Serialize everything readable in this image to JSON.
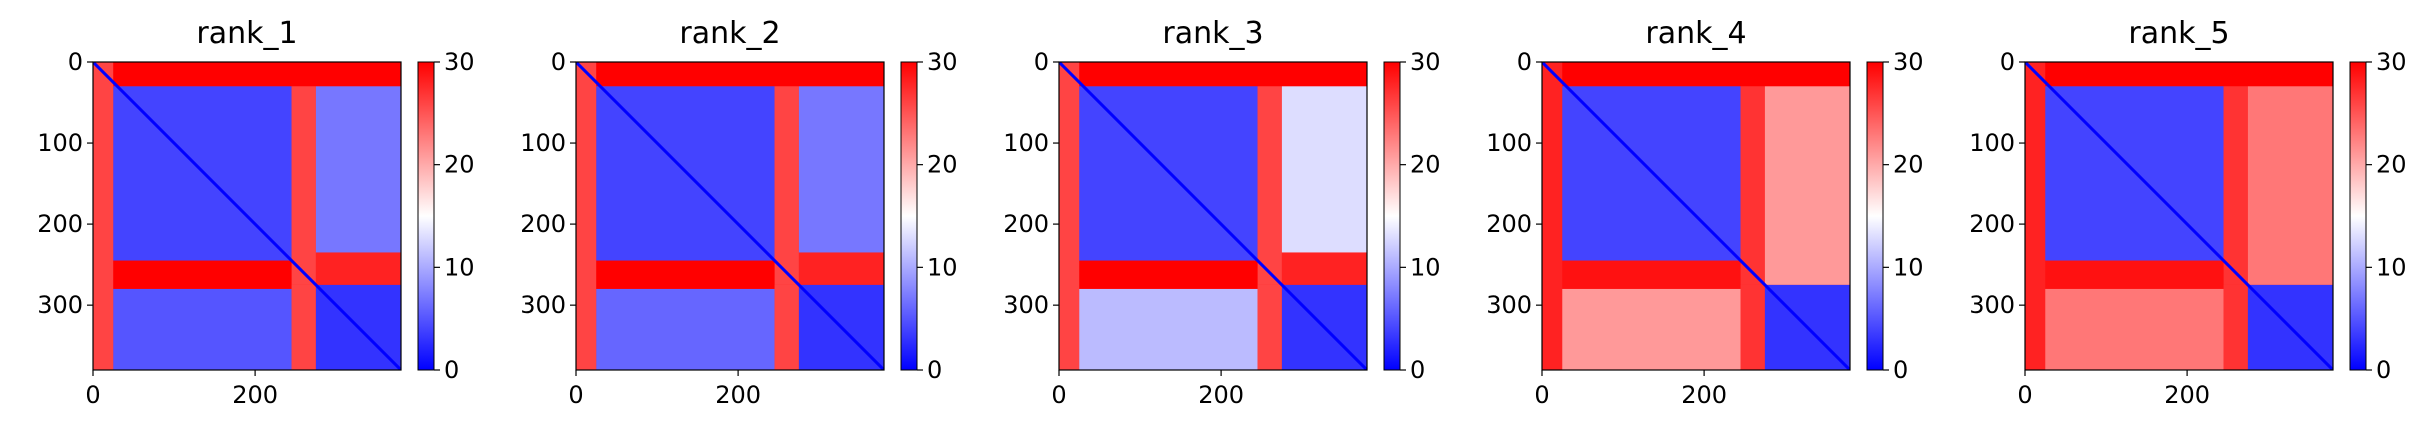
{
  "chart_data": [
    {
      "type": "heatmap",
      "title": "rank_1",
      "xlim": [
        0,
        380
      ],
      "ylim": [
        380,
        0
      ],
      "x_ticks": [
        0,
        200
      ],
      "y_ticks": [
        0,
        100,
        200,
        300
      ],
      "colorbar": {
        "colormap": "bwr",
        "min": 0,
        "max": 30,
        "ticks": [
          0,
          10,
          20,
          30
        ]
      },
      "blocks": [
        {
          "x0": 0,
          "x1": 25,
          "y0": 0,
          "y1": 380,
          "value": 26
        },
        {
          "x0": 25,
          "x1": 385,
          "y0": 0,
          "y1": 30,
          "value": 30
        },
        {
          "x0": 25,
          "x1": 245,
          "y0": 30,
          "y1": 245,
          "value": 4
        },
        {
          "x0": 245,
          "x1": 275,
          "y0": 30,
          "y1": 275,
          "value": 26
        },
        {
          "x0": 275,
          "x1": 385,
          "y0": 30,
          "y1": 235,
          "value": 7
        },
        {
          "x0": 275,
          "x1": 385,
          "y0": 235,
          "y1": 275,
          "value": 28
        },
        {
          "x0": 25,
          "x1": 245,
          "y0": 245,
          "y1": 280,
          "value": 30
        },
        {
          "x0": 25,
          "x1": 245,
          "y0": 280,
          "y1": 380,
          "value": 5
        },
        {
          "x0": 245,
          "x1": 275,
          "y0": 275,
          "y1": 380,
          "value": 26
        },
        {
          "x0": 275,
          "x1": 385,
          "y0": 275,
          "y1": 380,
          "value": 3
        }
      ],
      "diagonal_value": 0
    },
    {
      "type": "heatmap",
      "title": "rank_2",
      "xlim": [
        0,
        380
      ],
      "ylim": [
        380,
        0
      ],
      "x_ticks": [
        0,
        200
      ],
      "y_ticks": [
        0,
        100,
        200,
        300
      ],
      "colorbar": {
        "colormap": "bwr",
        "min": 0,
        "max": 30,
        "ticks": [
          0,
          10,
          20,
          30
        ]
      },
      "blocks": [
        {
          "x0": 0,
          "x1": 25,
          "y0": 0,
          "y1": 380,
          "value": 26
        },
        {
          "x0": 25,
          "x1": 385,
          "y0": 0,
          "y1": 30,
          "value": 30
        },
        {
          "x0": 25,
          "x1": 245,
          "y0": 30,
          "y1": 245,
          "value": 4
        },
        {
          "x0": 245,
          "x1": 275,
          "y0": 30,
          "y1": 275,
          "value": 26
        },
        {
          "x0": 275,
          "x1": 385,
          "y0": 30,
          "y1": 235,
          "value": 7
        },
        {
          "x0": 275,
          "x1": 385,
          "y0": 235,
          "y1": 275,
          "value": 28
        },
        {
          "x0": 25,
          "x1": 245,
          "y0": 245,
          "y1": 280,
          "value": 30
        },
        {
          "x0": 25,
          "x1": 245,
          "y0": 280,
          "y1": 380,
          "value": 6
        },
        {
          "x0": 245,
          "x1": 275,
          "y0": 275,
          "y1": 380,
          "value": 26
        },
        {
          "x0": 275,
          "x1": 385,
          "y0": 275,
          "y1": 380,
          "value": 3
        }
      ],
      "diagonal_value": 0
    },
    {
      "type": "heatmap",
      "title": "rank_3",
      "xlim": [
        0,
        380
      ],
      "ylim": [
        380,
        0
      ],
      "x_ticks": [
        0,
        200
      ],
      "y_ticks": [
        0,
        100,
        200,
        300
      ],
      "colorbar": {
        "colormap": "bwr",
        "min": 0,
        "max": 30,
        "ticks": [
          0,
          10,
          20,
          30
        ]
      },
      "blocks": [
        {
          "x0": 0,
          "x1": 25,
          "y0": 0,
          "y1": 380,
          "value": 26
        },
        {
          "x0": 25,
          "x1": 385,
          "y0": 0,
          "y1": 30,
          "value": 30
        },
        {
          "x0": 25,
          "x1": 245,
          "y0": 30,
          "y1": 245,
          "value": 4
        },
        {
          "x0": 245,
          "x1": 275,
          "y0": 30,
          "y1": 275,
          "value": 26
        },
        {
          "x0": 275,
          "x1": 385,
          "y0": 30,
          "y1": 235,
          "value": 13
        },
        {
          "x0": 275,
          "x1": 385,
          "y0": 235,
          "y1": 275,
          "value": 28
        },
        {
          "x0": 25,
          "x1": 245,
          "y0": 245,
          "y1": 280,
          "value": 30
        },
        {
          "x0": 25,
          "x1": 245,
          "y0": 280,
          "y1": 380,
          "value": 11
        },
        {
          "x0": 245,
          "x1": 275,
          "y0": 275,
          "y1": 380,
          "value": 26
        },
        {
          "x0": 275,
          "x1": 385,
          "y0": 275,
          "y1": 380,
          "value": 3
        }
      ],
      "diagonal_value": 0
    },
    {
      "type": "heatmap",
      "title": "rank_4",
      "xlim": [
        0,
        380
      ],
      "ylim": [
        380,
        0
      ],
      "x_ticks": [
        0,
        200
      ],
      "y_ticks": [
        0,
        100,
        200,
        300
      ],
      "colorbar": {
        "colormap": "bwr",
        "min": 0,
        "max": 30,
        "ticks": [
          0,
          10,
          20,
          30
        ]
      },
      "blocks": [
        {
          "x0": 0,
          "x1": 25,
          "y0": 0,
          "y1": 380,
          "value": 28
        },
        {
          "x0": 25,
          "x1": 385,
          "y0": 0,
          "y1": 30,
          "value": 30
        },
        {
          "x0": 25,
          "x1": 245,
          "y0": 30,
          "y1": 245,
          "value": 4
        },
        {
          "x0": 245,
          "x1": 275,
          "y0": 30,
          "y1": 275,
          "value": 27
        },
        {
          "x0": 275,
          "x1": 385,
          "y0": 30,
          "y1": 275,
          "value": 21
        },
        {
          "x0": 25,
          "x1": 245,
          "y0": 245,
          "y1": 280,
          "value": 29
        },
        {
          "x0": 25,
          "x1": 245,
          "y0": 280,
          "y1": 380,
          "value": 21
        },
        {
          "x0": 245,
          "x1": 275,
          "y0": 275,
          "y1": 380,
          "value": 27
        },
        {
          "x0": 275,
          "x1": 385,
          "y0": 275,
          "y1": 380,
          "value": 3
        }
      ],
      "diagonal_value": 0
    },
    {
      "type": "heatmap",
      "title": "rank_5",
      "xlim": [
        0,
        380
      ],
      "ylim": [
        380,
        0
      ],
      "x_ticks": [
        0,
        200
      ],
      "y_ticks": [
        0,
        100,
        200,
        300
      ],
      "colorbar": {
        "colormap": "bwr",
        "min": 0,
        "max": 30,
        "ticks": [
          0,
          10,
          20,
          30
        ]
      },
      "blocks": [
        {
          "x0": 0,
          "x1": 25,
          "y0": 0,
          "y1": 380,
          "value": 28
        },
        {
          "x0": 25,
          "x1": 385,
          "y0": 0,
          "y1": 30,
          "value": 30
        },
        {
          "x0": 25,
          "x1": 245,
          "y0": 30,
          "y1": 245,
          "value": 4
        },
        {
          "x0": 245,
          "x1": 275,
          "y0": 30,
          "y1": 275,
          "value": 27
        },
        {
          "x0": 275,
          "x1": 385,
          "y0": 30,
          "y1": 275,
          "value": 23
        },
        {
          "x0": 25,
          "x1": 245,
          "y0": 245,
          "y1": 280,
          "value": 29
        },
        {
          "x0": 25,
          "x1": 245,
          "y0": 280,
          "y1": 380,
          "value": 23
        },
        {
          "x0": 245,
          "x1": 275,
          "y0": 275,
          "y1": 380,
          "value": 27
        },
        {
          "x0": 275,
          "x1": 385,
          "y0": 275,
          "y1": 380,
          "value": 3
        }
      ],
      "diagonal_value": 0
    }
  ]
}
